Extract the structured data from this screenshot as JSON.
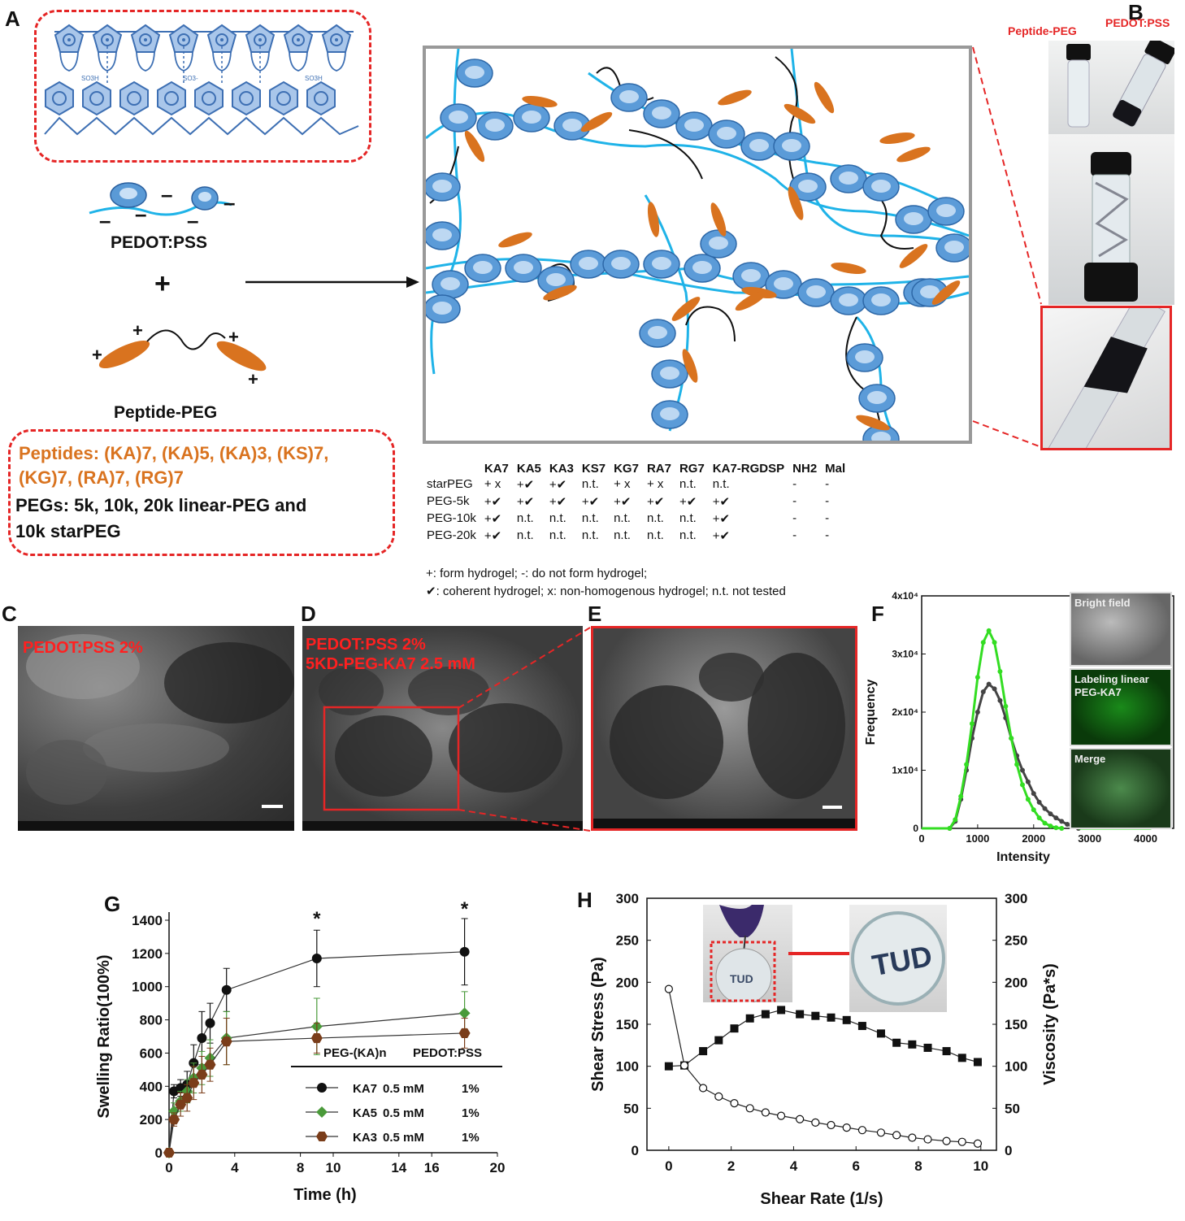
{
  "panels": {
    "A": "A",
    "B": "B",
    "C": "C",
    "D": "D",
    "E": "E",
    "F": "F",
    "G": "G",
    "H": "H"
  },
  "panel_a": {
    "pedot_label": "PEDOT:PSS",
    "plus": "+",
    "peptide_peg_label": "Peptide-PEG",
    "so3h": "SO3H",
    "so3minus": "SO3-",
    "peptides_line1": "Peptides: (KA)7, (KA)5, (KA)3, (KS)7,",
    "peptides_line2": "(KG)7, (RA)7, (RG)7",
    "pegs_line1": "PEGs: 5k, 10k, 20k linear-PEG and",
    "pegs_line2": "10k starPEG",
    "colors": {
      "orange": "#d9731f",
      "blue": "#3d7fc1",
      "red": "#e52626"
    }
  },
  "panel_b": {
    "peptide_peg_label": "Peptide-PEG",
    "pedot_label": "PEDOT:PSS"
  },
  "table": {
    "headers": [
      "",
      "KA7",
      "KA5",
      "KA3",
      "KS7",
      "KG7",
      "RA7",
      "RG7",
      "KA7-RGDSP",
      "NH2",
      "Mal"
    ],
    "rows": [
      [
        "starPEG",
        "+ x",
        "+✔",
        "+✔",
        "n.t.",
        "+ x",
        "+ x",
        "n.t.",
        "n.t.",
        "-",
        "-"
      ],
      [
        "PEG-5k",
        "+✔",
        "+✔",
        "+✔",
        "+✔",
        "+✔",
        "+✔",
        "+✔",
        "+✔",
        "-",
        "-"
      ],
      [
        "PEG-10k",
        "+✔",
        "n.t.",
        "n.t.",
        "n.t.",
        "n.t.",
        "n.t.",
        "n.t.",
        "+✔",
        "-",
        "-"
      ],
      [
        "PEG-20k",
        "+✔",
        "n.t.",
        "n.t.",
        "n.t.",
        "n.t.",
        "n.t.",
        "n.t.",
        "+✔",
        "-",
        "-"
      ]
    ],
    "legend1": "+: form hydrogel; -: do not form hydrogel;",
    "legend2": "✔: coherent hydrogel; x: non-homogenous hydrogel; n.t. not tested"
  },
  "panel_c": {
    "label": "PEDOT:PSS 2%"
  },
  "panel_d": {
    "label1": "PEDOT:PSS     2%",
    "label2": "5KD-PEG-KA7   2.5 mM"
  },
  "panel_f": {
    "micro": [
      "Bright  field",
      "Labeling linear PEG-KA7",
      "Merge"
    ]
  },
  "panel_h_photos": {
    "tud": "TUD"
  },
  "chart_data": [
    {
      "id": "F",
      "type": "scatter",
      "xlabel": "Intensity",
      "ylabel": "Frequency",
      "xlim": [
        0,
        4500
      ],
      "ylim": [
        0,
        40000
      ],
      "xticks": [
        "0",
        "1000",
        "2000",
        "3000",
        "4000"
      ],
      "yticks": [
        "0",
        "1x10⁴",
        "2x10⁴",
        "3x10⁴",
        "4x10⁴"
      ],
      "series": [
        {
          "color": "#444444",
          "x": [
            500,
            600,
            700,
            800,
            900,
            1000,
            1100,
            1200,
            1300,
            1400,
            1500,
            1600,
            1700,
            1800,
            1900,
            2000,
            2100,
            2200,
            2300,
            2400,
            2500,
            2600,
            2700,
            2800
          ],
          "y": [
            0,
            1200,
            5000,
            10000,
            15500,
            20000,
            23500,
            24800,
            24000,
            22000,
            19000,
            15500,
            12500,
            10000,
            8000,
            6000,
            4500,
            3400,
            2500,
            1800,
            1200,
            700,
            300,
            0
          ]
        },
        {
          "color": "#33dd22",
          "x": [
            500,
            600,
            700,
            800,
            900,
            1000,
            1100,
            1200,
            1300,
            1400,
            1500,
            1600,
            1700,
            1800,
            1900,
            2000,
            2100,
            2200,
            2300,
            2400,
            2500
          ],
          "y": [
            0,
            1500,
            5500,
            11000,
            18000,
            26000,
            32000,
            34000,
            32000,
            27000,
            21000,
            15500,
            11000,
            7500,
            5000,
            3200,
            1800,
            900,
            400,
            100,
            0
          ]
        }
      ]
    },
    {
      "id": "G",
      "type": "line",
      "xlabel": "Time (h)",
      "ylabel": "Swelling Ratio(100%)",
      "xlim": [
        0,
        20
      ],
      "ylim": [
        0,
        1400
      ],
      "xticks": [
        "0",
        "4",
        "8",
        "10",
        "14",
        "16",
        "20"
      ],
      "xtick_values": [
        0,
        4,
        8,
        10,
        14,
        16,
        20
      ],
      "yticks": [
        "0",
        "200",
        "400",
        "600",
        "800",
        "1000",
        "1200",
        "1400"
      ],
      "legend_header": [
        "PEG-(KA)n",
        "PEDOT:PSS"
      ],
      "annotations": [
        "*",
        "*"
      ],
      "annotation_x": [
        9,
        18
      ],
      "annotation_y": [
        1370,
        1430
      ],
      "series": [
        {
          "name": "KA7",
          "conc": "0.5 mM",
          "pedot": "1%",
          "color": "#111111",
          "marker": "circle",
          "x": [
            0,
            0.3,
            0.7,
            1.1,
            1.5,
            2.0,
            2.5,
            3.5,
            9,
            18
          ],
          "y": [
            0,
            370,
            390,
            410,
            540,
            690,
            780,
            980,
            1170,
            1210
          ],
          "err": [
            0,
            40,
            50,
            80,
            110,
            160,
            120,
            130,
            170,
            200
          ]
        },
        {
          "name": "KA5",
          "conc": "0.5 mM",
          "pedot": "1%",
          "color": "#4a9a3a",
          "marker": "diamond",
          "x": [
            0,
            0.3,
            0.7,
            1.1,
            1.5,
            2.0,
            2.5,
            3.5,
            9,
            18
          ],
          "y": [
            0,
            250,
            310,
            370,
            450,
            510,
            570,
            690,
            760,
            840
          ],
          "err": [
            0,
            50,
            60,
            70,
            90,
            100,
            110,
            160,
            170,
            130
          ]
        },
        {
          "name": "KA3",
          "conc": "0.5 mM",
          "pedot": "1%",
          "color": "#7a3d1a",
          "marker": "hexagon",
          "x": [
            0,
            0.3,
            0.7,
            1.1,
            1.5,
            2.0,
            2.5,
            3.5,
            9,
            18
          ],
          "y": [
            0,
            200,
            290,
            330,
            420,
            470,
            530,
            670,
            690,
            720
          ],
          "err": [
            0,
            40,
            70,
            80,
            100,
            110,
            100,
            140,
            90,
            90
          ]
        }
      ]
    },
    {
      "id": "H",
      "type": "line",
      "xlabel": "Shear Rate (1/s)",
      "ylabel": "Shear Stress (Pa)",
      "y2label": "Viscosity (Pa*s)",
      "xlim": [
        -0.7,
        10.5
      ],
      "ylim": [
        0,
        300
      ],
      "xticks": [
        "0",
        "2",
        "4",
        "6",
        "8",
        "10"
      ],
      "xtick_values": [
        0,
        2,
        4,
        6,
        8,
        10
      ],
      "yticks": [
        "0",
        "50",
        "100",
        "150",
        "200",
        "250",
        "300"
      ],
      "series": [
        {
          "name": "Shear Stress",
          "marker": "filled-square",
          "color": "#111111",
          "x": [
            0,
            0.5,
            1.1,
            1.6,
            2.1,
            2.6,
            3.1,
            3.6,
            4.2,
            4.7,
            5.2,
            5.7,
            6.2,
            6.8,
            7.3,
            7.8,
            8.3,
            8.9,
            9.4,
            9.9
          ],
          "y": [
            100,
            101,
            118,
            131,
            145,
            157,
            162,
            167,
            162,
            160,
            158,
            155,
            148,
            139,
            128,
            126,
            122,
            118,
            110,
            105
          ]
        },
        {
          "name": "Viscosity",
          "marker": "open-circle",
          "color": "#111111",
          "x": [
            0,
            0.5,
            1.1,
            1.6,
            2.1,
            2.6,
            3.1,
            3.6,
            4.2,
            4.7,
            5.2,
            5.7,
            6.2,
            6.8,
            7.3,
            7.8,
            8.3,
            8.9,
            9.4,
            9.9
          ],
          "y": [
            192,
            101,
            74,
            64,
            56,
            50,
            45,
            41,
            37,
            33,
            30,
            27,
            24,
            21,
            18,
            15,
            13,
            11,
            10,
            8
          ]
        }
      ]
    }
  ]
}
